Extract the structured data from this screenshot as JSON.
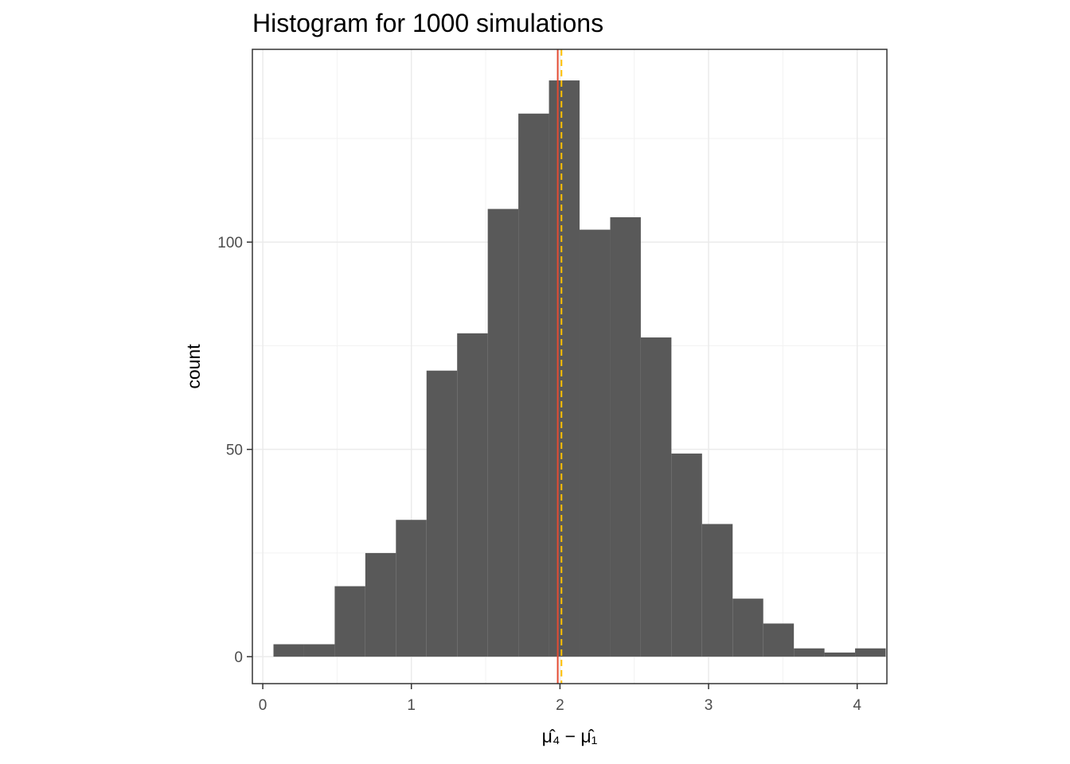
{
  "chart_data": {
    "type": "bar",
    "title": "Histogram for 1000 simulations",
    "xlabel": "μ̂₄ − μ̂₁",
    "ylabel": "count",
    "xlim": [
      -0.07,
      4.2
    ],
    "ylim": [
      -6.5,
      146.5
    ],
    "x_ticks": [
      "0",
      "1",
      "2",
      "3",
      "4"
    ],
    "y_ticks": [
      "0",
      "50",
      "100"
    ],
    "bin_width": 0.206,
    "bins": [
      {
        "x0": 0.072,
        "x1": 0.278,
        "count": 3
      },
      {
        "x0": 0.278,
        "x1": 0.484,
        "count": 3
      },
      {
        "x0": 0.484,
        "x1": 0.69,
        "count": 17
      },
      {
        "x0": 0.69,
        "x1": 0.896,
        "count": 25
      },
      {
        "x0": 0.896,
        "x1": 1.102,
        "count": 33
      },
      {
        "x0": 1.102,
        "x1": 1.308,
        "count": 69
      },
      {
        "x0": 1.308,
        "x1": 1.514,
        "count": 78
      },
      {
        "x0": 1.514,
        "x1": 1.72,
        "count": 108
      },
      {
        "x0": 1.72,
        "x1": 1.926,
        "count": 131
      },
      {
        "x0": 1.926,
        "x1": 2.132,
        "count": 139
      },
      {
        "x0": 2.132,
        "x1": 2.338,
        "count": 103
      },
      {
        "x0": 2.338,
        "x1": 2.544,
        "count": 106
      },
      {
        "x0": 2.544,
        "x1": 2.75,
        "count": 77
      },
      {
        "x0": 2.75,
        "x1": 2.956,
        "count": 49
      },
      {
        "x0": 2.956,
        "x1": 3.162,
        "count": 32
      },
      {
        "x0": 3.162,
        "x1": 3.368,
        "count": 14
      },
      {
        "x0": 3.368,
        "x1": 3.574,
        "count": 8
      },
      {
        "x0": 3.574,
        "x1": 3.78,
        "count": 2
      },
      {
        "x0": 3.78,
        "x1": 3.986,
        "count": 1
      },
      {
        "x0": 3.986,
        "x1": 4.192,
        "count": 2
      }
    ],
    "vlines": [
      {
        "x": 1.985,
        "color": "#e34a33",
        "style": "solid"
      },
      {
        "x": 2.01,
        "color": "#ffc000",
        "style": "dashed"
      }
    ],
    "bar_color": "#595959",
    "grid": true,
    "legend": "none"
  }
}
